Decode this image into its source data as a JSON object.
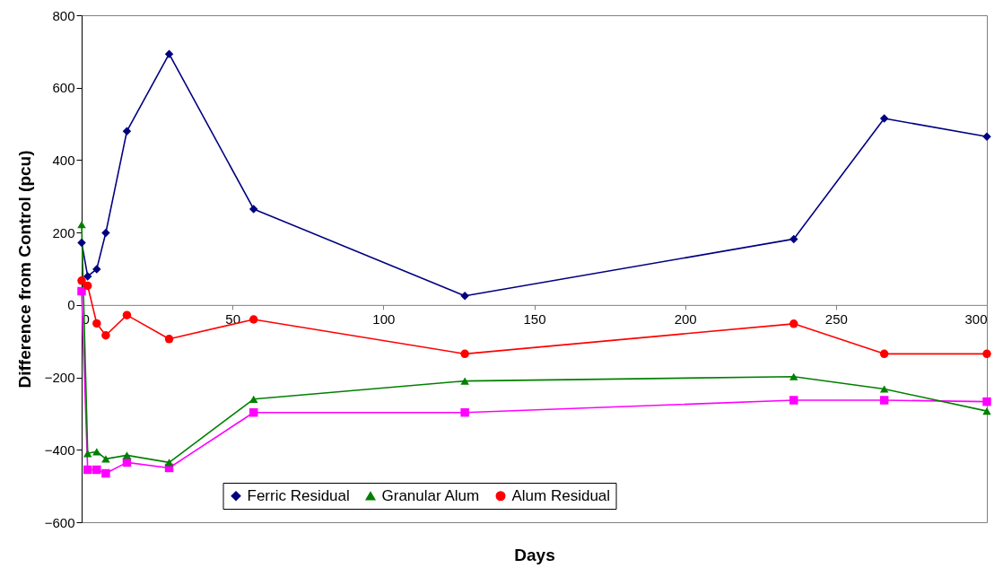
{
  "chart_data": {
    "type": "line",
    "xlabel": "Days",
    "ylabel": "Difference from Control (pcu)",
    "x": [
      0,
      2,
      5,
      8,
      15,
      29,
      57,
      127,
      236,
      266,
      300
    ],
    "series": [
      {
        "name": "Ferric Residual",
        "color": "#000080",
        "marker": "diamond",
        "values": [
          172,
          79,
          99,
          199,
          480,
          693,
          265,
          25,
          182,
          515,
          465
        ]
      },
      {
        "color": "#ff00ff",
        "marker": "square",
        "values": [
          38,
          -455,
          -455,
          -465,
          -435,
          -450,
          -297,
          -297,
          -263,
          -263,
          -267
        ]
      },
      {
        "name": "Granular Alum",
        "color": "#008000",
        "marker": "triangle",
        "values": [
          222,
          -410,
          -405,
          -425,
          -415,
          -435,
          -260,
          -210,
          -198,
          -232,
          -293
        ]
      },
      {
        "name": "Alum Residual",
        "color": "#ff0000",
        "marker": "circle",
        "values": [
          67,
          53,
          -51,
          -84,
          -28,
          -94,
          -40,
          -135,
          -52,
          -135,
          -135
        ]
      }
    ],
    "xlim": [
      0,
      300
    ],
    "xticks": [
      0,
      50,
      100,
      150,
      200,
      250,
      300
    ],
    "ylim": [
      -600,
      800
    ],
    "yticks": [
      -600,
      -400,
      -200,
      0,
      200,
      400,
      600,
      800
    ],
    "legend": "bottom",
    "grid": false
  }
}
